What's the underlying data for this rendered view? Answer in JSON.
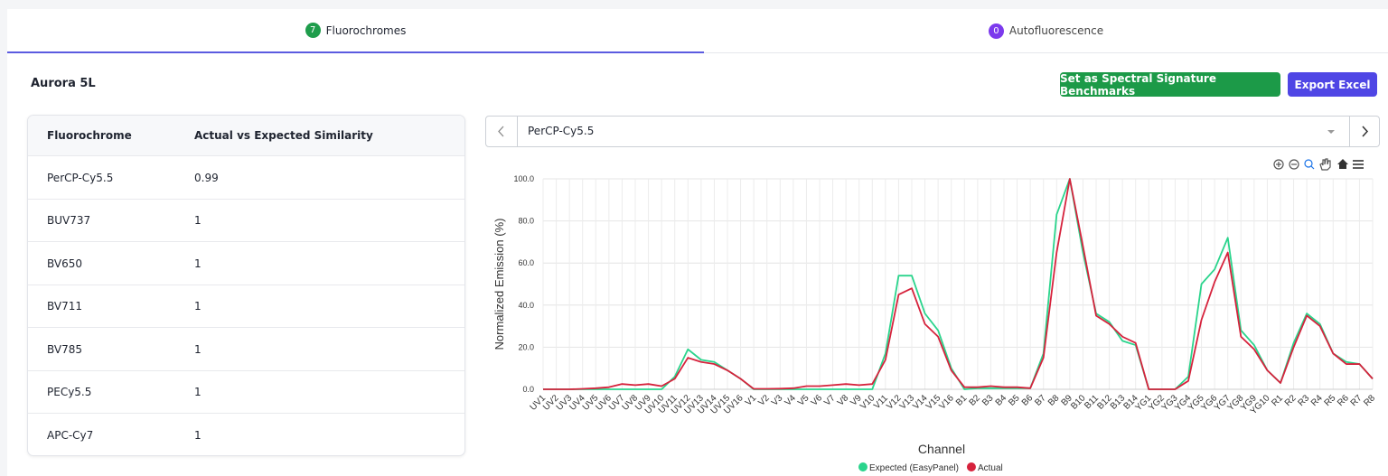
{
  "tabs": [
    {
      "count": 7,
      "label": "Fluorochromes"
    },
    {
      "count": 0,
      "label": "Autofluorescence"
    }
  ],
  "instrument": "Aurora 5L",
  "buttons": [
    "Set as Spectral Signature Benchmarks",
    "Export Excel"
  ],
  "table": {
    "columns": [
      "Fluorochrome",
      "Actual vs Expected Similarity"
    ],
    "rows": [
      [
        "PerCP-Cy5.5",
        0.99
      ],
      [
        "BUV737",
        1
      ],
      [
        "BV650",
        1
      ],
      [
        "BV711",
        1
      ],
      [
        "BV785",
        1
      ],
      [
        "PECy5.5",
        1
      ],
      [
        "APC-Cy7",
        1
      ]
    ]
  },
  "selector": "PerCP-Cy5.5",
  "chart_data": {
    "type": "line",
    "y_label": "Normalized Emission (%)",
    "x_label": "Channel",
    "categories": [
      "UV1",
      "UV2",
      "UV3",
      "UV4",
      "UV5",
      "UV6",
      "UV7",
      "UV8",
      "UV9",
      "UV10",
      "UV11",
      "UV12",
      "UV13",
      "UV14",
      "UV15",
      "UV16",
      "V1",
      "V2",
      "V3",
      "V4",
      "V5",
      "V6",
      "V7",
      "V8",
      "V9",
      "V10",
      "V11",
      "V12",
      "V13",
      "V14",
      "V15",
      "V16",
      "B1",
      "B2",
      "B3",
      "B4",
      "B5",
      "B6",
      "B7",
      "B8",
      "B9",
      "B10",
      "B11",
      "B12",
      "B13",
      "B14",
      "YG1",
      "YG2",
      "YG3",
      "YG4",
      "YG5",
      "YG6",
      "YG7",
      "YG8",
      "YG9",
      "YG10",
      "R1",
      "R2",
      "R3",
      "R4",
      "R5",
      "R6",
      "R7",
      "R8"
    ],
    "series": [
      {
        "name": "Expected (EasyPanel)",
        "color": "#2ad48c",
        "values": [
          0,
          0,
          0,
          0,
          0,
          0,
          0,
          0,
          0,
          0,
          6,
          19,
          14,
          13,
          9,
          5,
          0,
          0,
          0,
          0,
          0,
          0,
          0,
          0,
          0,
          0,
          17,
          54,
          54,
          36,
          28,
          10,
          0,
          0.5,
          0.5,
          0.5,
          0.5,
          0.5,
          17,
          83,
          100,
          65,
          36,
          32,
          23,
          21,
          0,
          0,
          0,
          6,
          50,
          57,
          72,
          28,
          21,
          9,
          3,
          22,
          36,
          31,
          17,
          13,
          12,
          5
        ]
      },
      {
        "name": "Actual",
        "color": "#d6223c",
        "values": [
          0,
          0,
          0,
          0.2,
          0.5,
          1,
          2.5,
          2,
          2.5,
          1.5,
          5,
          15,
          13,
          12,
          9,
          5,
          0.2,
          0.2,
          0.3,
          0.5,
          1.5,
          1.5,
          2,
          2.5,
          2,
          2.5,
          14,
          45,
          48,
          31,
          25,
          9,
          1,
          1,
          1.5,
          1,
          1,
          0.5,
          15,
          65,
          100,
          68,
          35,
          31,
          25,
          22,
          0,
          0,
          0,
          4,
          33,
          51,
          65,
          25,
          19,
          9,
          3,
          20,
          35,
          30,
          17,
          12,
          12,
          5
        ]
      }
    ],
    "ylim": [
      0,
      100
    ],
    "yticks": [
      {
        "value": 0,
        "label": "0.0"
      },
      {
        "value": 20,
        "label": "20.0"
      },
      {
        "value": 40,
        "label": "40.0"
      },
      {
        "value": 60,
        "label": "60.0"
      },
      {
        "value": 80,
        "label": "80.0"
      },
      {
        "value": 100,
        "label": "100.0"
      }
    ],
    "grid": true,
    "legend": "bottom"
  }
}
